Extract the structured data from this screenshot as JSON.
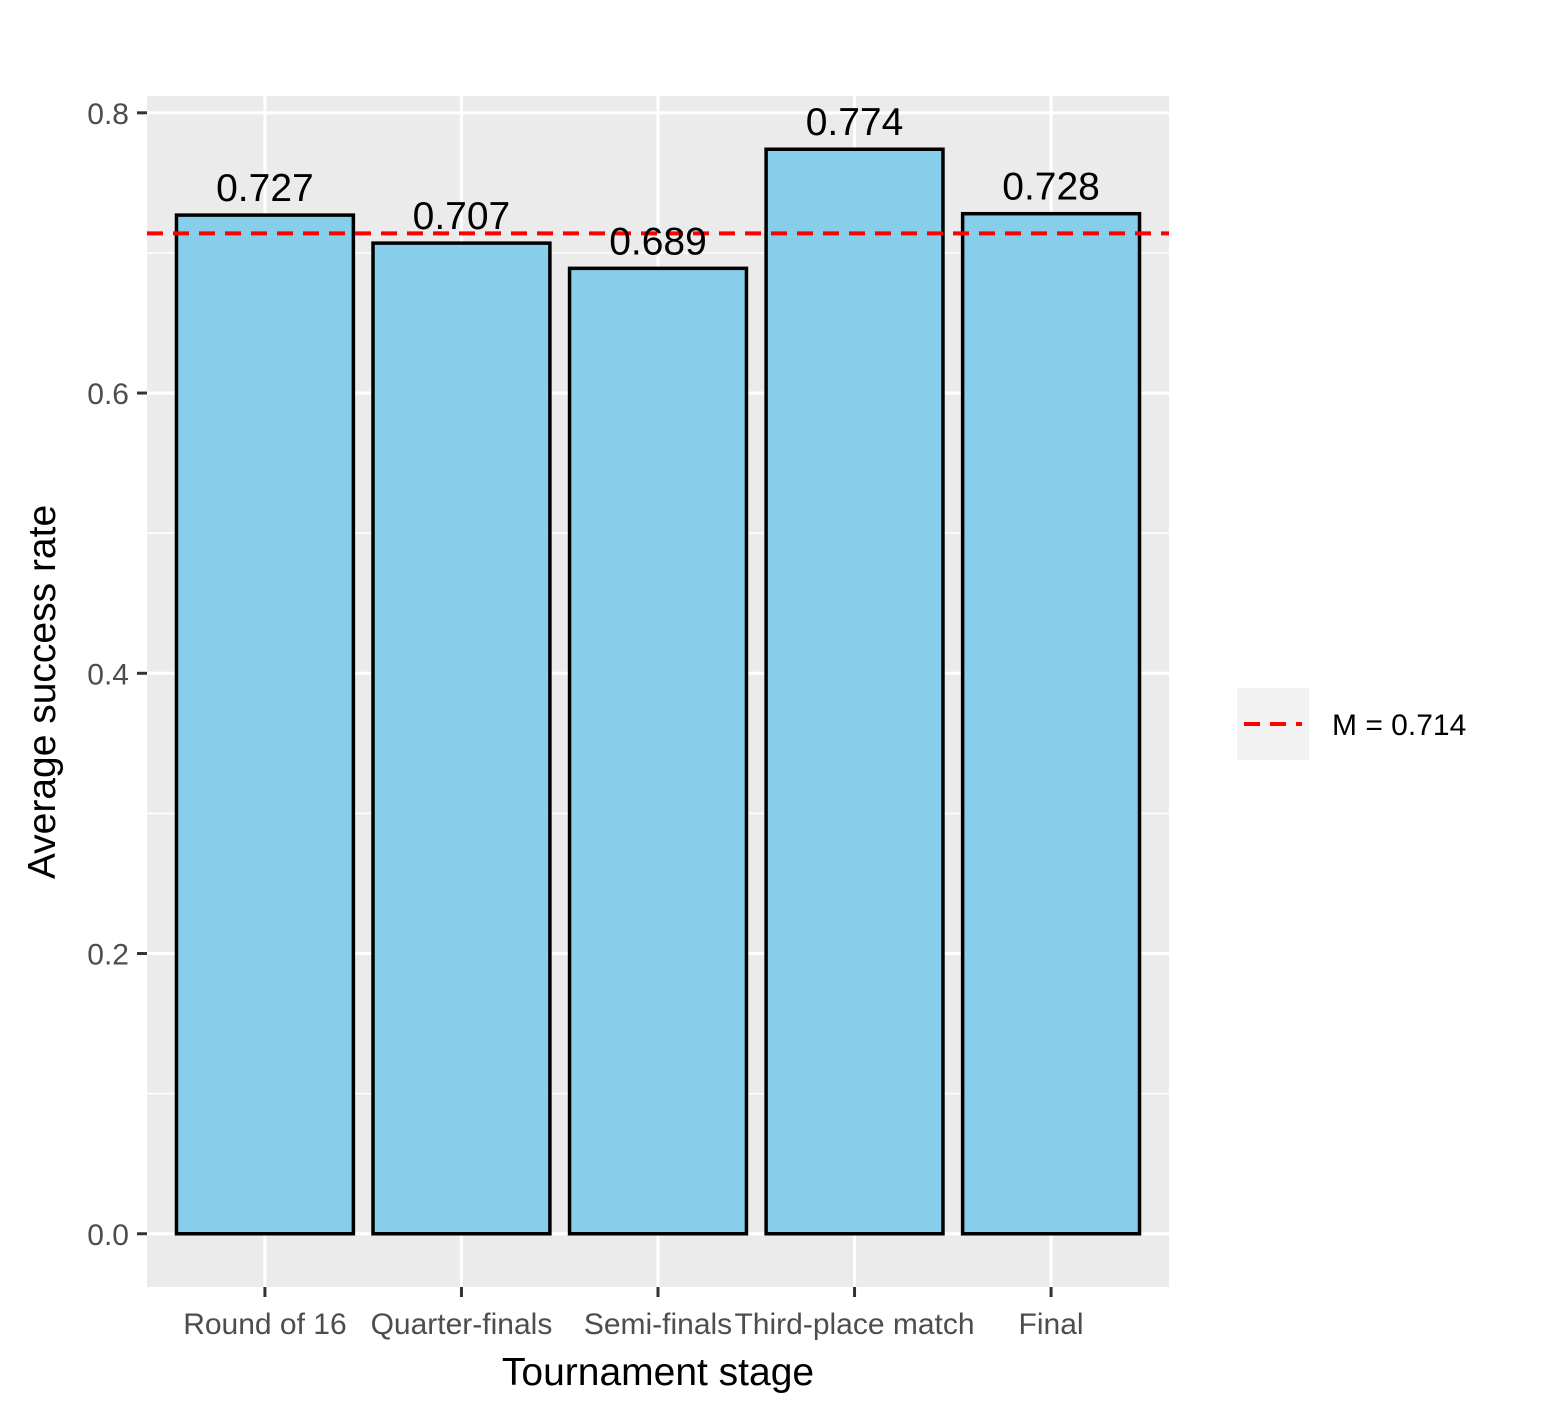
{
  "chart_data": {
    "type": "bar",
    "categories": [
      "Round of 16",
      "Quarter-finals",
      "Semi-finals",
      "Third-place match",
      "Final"
    ],
    "values": [
      0.727,
      0.707,
      0.689,
      0.774,
      0.728
    ],
    "data_labels": [
      "0.727",
      "0.707",
      "0.689",
      "0.774",
      "0.728"
    ],
    "xlabel": "Tournament stage",
    "ylabel": "Average success rate",
    "ylim": [
      -0.038,
      0.812
    ],
    "yticks": [
      0.0,
      0.2,
      0.4,
      0.6,
      0.8
    ],
    "ytick_labels": [
      "0.0",
      "0.2",
      "0.4",
      "0.6",
      "0.8"
    ],
    "grid": true,
    "reference_line": {
      "value": 0.714,
      "label": "M = 0.714",
      "style": "dashed",
      "color": "#ff0000"
    },
    "legend_position": "right",
    "colors": {
      "bar_fill": "#87ceeb",
      "bar_stroke": "#000000",
      "panel_background": "#ebebeb",
      "grid": "#ffffff",
      "legend_key_background": "#f2f2f2"
    }
  }
}
